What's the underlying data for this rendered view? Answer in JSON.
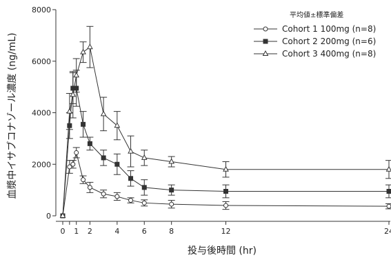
{
  "chart_data": {
    "type": "line",
    "xlabel": "投与後時間 (hr)",
    "ylabel": "血漿中イサブコナゾール濃度 (ng/mL)",
    "x_ticks": [
      0,
      0.5,
      1,
      2,
      4,
      6,
      8,
      12,
      24
    ],
    "x_tick_labels": [
      "0",
      "1",
      "2",
      "4",
      "6",
      "8",
      "12",
      "24"
    ],
    "x_tick_label_values": [
      0,
      1,
      2,
      4,
      6,
      8,
      12,
      24
    ],
    "y_ticks": [
      0,
      2000,
      4000,
      6000,
      8000
    ],
    "y_tick_labels": [
      "0",
      "2000",
      "4000",
      "6000",
      "8000"
    ],
    "xlim": [
      0,
      24
    ],
    "ylim": [
      0,
      8000
    ],
    "grid": false,
    "legend_title": "平均値±標準偏差",
    "legend_position": "top-right",
    "series": [
      {
        "name": "Cohort 1 100mg (n=8)",
        "marker": "circle-open",
        "color": "#333333",
        "x": [
          0,
          0.5,
          0.75,
          1,
          1.5,
          2,
          3,
          4,
          5,
          6,
          8,
          12,
          24
        ],
        "y": [
          0,
          1900,
          2000,
          2450,
          1400,
          1100,
          850,
          750,
          600,
          500,
          450,
          400,
          370
        ],
        "err": [
          0,
          250,
          150,
          200,
          150,
          200,
          150,
          150,
          100,
          120,
          150,
          150,
          100
        ]
      },
      {
        "name": "Cohort 2 200mg (n=6)",
        "marker": "square-filled",
        "color": "#333333",
        "x": [
          0,
          0.5,
          0.75,
          1,
          1.5,
          2,
          3,
          4,
          5,
          6,
          8,
          12,
          24
        ],
        "y": [
          0,
          3500,
          4950,
          4950,
          3550,
          2800,
          2250,
          2000,
          1450,
          1100,
          1000,
          950,
          950
        ],
        "err": [
          0,
          500,
          600,
          700,
          500,
          250,
          300,
          400,
          300,
          300,
          200,
          250,
          250
        ]
      },
      {
        "name": "Cohort 3 400mg (n=8)",
        "marker": "triangle-open",
        "color": "#333333",
        "x": [
          0,
          0.5,
          0.75,
          1,
          1.5,
          2,
          3,
          4,
          5,
          6,
          8,
          12,
          24
        ],
        "y": [
          0,
          4050,
          4700,
          5450,
          6350,
          6550,
          3950,
          3500,
          2500,
          2250,
          2100,
          1800,
          1800
        ],
        "err": [
          0,
          700,
          900,
          650,
          400,
          800,
          650,
          550,
          600,
          300,
          200,
          300,
          350
        ]
      }
    ]
  }
}
